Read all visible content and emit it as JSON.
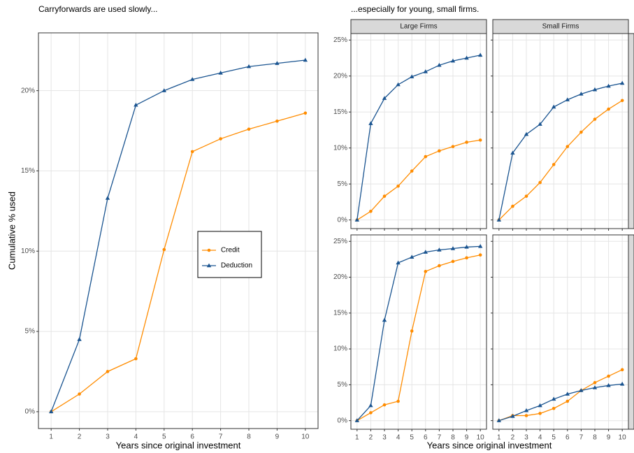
{
  "chart_data": [
    {
      "type": "line",
      "title": "Carryforwards are used slowly...",
      "x_label": "Years since original investment",
      "y_label": "Cumulative % used",
      "x": [
        1,
        2,
        3,
        4,
        5,
        6,
        7,
        8,
        9,
        10
      ],
      "xlim": [
        0.55,
        10.45
      ],
      "xticks": [
        1,
        2,
        3,
        4,
        5,
        6,
        7,
        8,
        9,
        10
      ],
      "ylim": [
        -1.05,
        23.6
      ],
      "yticks": [
        {
          "value": 0,
          "label": "0%"
        },
        {
          "value": 5,
          "label": "5%"
        },
        {
          "value": 10,
          "label": "10%"
        },
        {
          "value": 15,
          "label": "15%"
        },
        {
          "value": 20,
          "label": "20%"
        }
      ],
      "grid": true,
      "legend": "center-right",
      "series": [
        {
          "name": "Credit",
          "color": "#ff8c00",
          "marker": "circle",
          "values": [
            0,
            1.1,
            2.5,
            3.3,
            10.1,
            16.2,
            17.0,
            17.6,
            18.1,
            18.6
          ]
        },
        {
          "name": "Deduction",
          "color": "#1a5490",
          "marker": "triangle",
          "values": [
            0,
            4.5,
            13.3,
            19.1,
            20.0,
            20.7,
            21.1,
            21.5,
            21.7,
            21.9
          ]
        }
      ]
    },
    {
      "type": "line",
      "title": "...especially for young, small firms.",
      "x_label": "Years since original investment",
      "columns": [
        "Large Firms",
        "Small Firms"
      ],
      "x": [
        1,
        2,
        3,
        4,
        5,
        6,
        7,
        8,
        9,
        10
      ],
      "xlim": [
        0.55,
        10.45
      ],
      "xticks": [
        1,
        2,
        3,
        4,
        5,
        6,
        7,
        8,
        9,
        10
      ],
      "ylim": [
        -1.2,
        25.9
      ],
      "yticks": [
        {
          "value": 0,
          "label": "0%"
        },
        {
          "value": 5,
          "label": "5%"
        },
        {
          "value": 10,
          "label": "10%"
        },
        {
          "value": 15,
          "label": "15%"
        },
        {
          "value": 20,
          "label": "20%"
        },
        {
          "value": 25,
          "label": "25%"
        }
      ],
      "grid": true,
      "panels": [
        {
          "series": [
            {
              "color": "#ff8c00",
              "marker": "circle",
              "values": [
                0,
                1.2,
                3.3,
                4.7,
                6.8,
                8.8,
                9.6,
                10.2,
                10.8,
                11.1
              ]
            },
            {
              "color": "#1a5490",
              "marker": "triangle",
              "values": [
                0,
                13.4,
                16.9,
                18.8,
                19.9,
                20.6,
                21.5,
                22.1,
                22.5,
                22.9
              ]
            }
          ]
        },
        {
          "series": [
            {
              "color": "#ff8c00",
              "marker": "circle",
              "values": [
                0,
                1.9,
                3.3,
                5.2,
                7.7,
                10.2,
                12.2,
                14.0,
                15.4,
                16.6
              ]
            },
            {
              "color": "#1a5490",
              "marker": "triangle",
              "values": [
                0,
                9.3,
                11.9,
                13.3,
                15.7,
                16.7,
                17.5,
                18.1,
                18.6,
                19.0
              ]
            }
          ]
        },
        {
          "series": [
            {
              "color": "#ff8c00",
              "marker": "circle",
              "values": [
                0,
                1.1,
                2.2,
                2.7,
                12.5,
                20.8,
                21.6,
                22.2,
                22.7,
                23.1
              ]
            },
            {
              "color": "#1a5490",
              "marker": "triangle",
              "values": [
                0,
                2.1,
                14.0,
                22.0,
                22.8,
                23.5,
                23.8,
                24.0,
                24.2,
                24.3
              ]
            }
          ]
        },
        {
          "series": [
            {
              "color": "#ff8c00",
              "marker": "circle",
              "values": [
                0,
                0.7,
                0.7,
                1.0,
                1.7,
                2.7,
                4.2,
                5.3,
                6.2,
                7.1
              ]
            },
            {
              "color": "#1a5490",
              "marker": "triangle",
              "values": [
                0,
                0.6,
                1.4,
                2.1,
                3.0,
                3.7,
                4.2,
                4.6,
                4.9,
                5.1
              ]
            }
          ]
        }
      ]
    }
  ]
}
